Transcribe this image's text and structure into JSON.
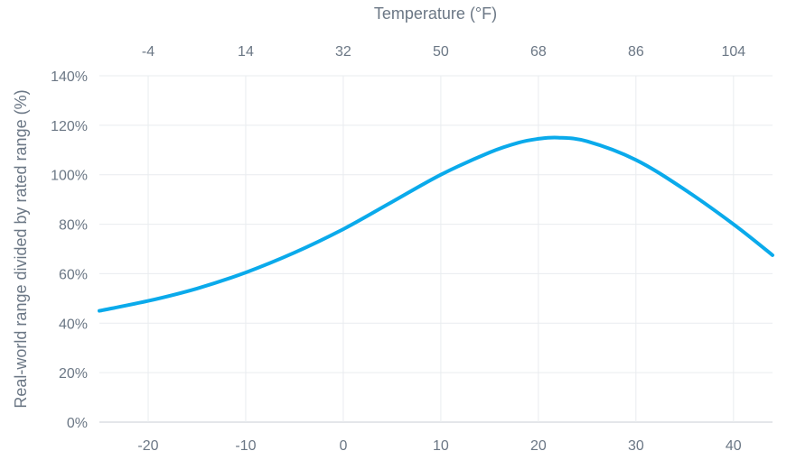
{
  "chart_data": {
    "type": "line",
    "top_axis_title": "Temperature (°F)",
    "ylabel": "Real-world range divided by rated range (%)",
    "xlabel": "",
    "xlim": [
      -25,
      44
    ],
    "ylim": [
      0,
      140
    ],
    "y_ticks": [
      0,
      20,
      40,
      60,
      80,
      100,
      120,
      140
    ],
    "y_tick_labels": [
      "0%",
      "20%",
      "40%",
      "60%",
      "80%",
      "100%",
      "120%",
      "140%"
    ],
    "x_ticks": [
      -20,
      -10,
      0,
      10,
      20,
      30,
      40
    ],
    "x_tick_labels": [
      "-20",
      "-10",
      "0",
      "10",
      "20",
      "30",
      "40"
    ],
    "top_ticks": [
      -4,
      14,
      32,
      50,
      68,
      86,
      104
    ],
    "top_tick_labels": [
      "-4",
      "14",
      "32",
      "50",
      "68",
      "86",
      "104"
    ],
    "grid": true,
    "line_color": "#0aaaeb",
    "series": [
      {
        "x": [
          -25,
          -20,
          -15,
          -10,
          -5,
          0,
          5,
          10,
          15,
          18,
          20,
          22,
          25,
          30,
          35,
          40,
          44
        ],
        "y": [
          45,
          49,
          54,
          60.5,
          68.5,
          78,
          89,
          100,
          109,
          113,
          114.5,
          115,
          113.5,
          106,
          94,
          80,
          67.5
        ]
      }
    ]
  }
}
